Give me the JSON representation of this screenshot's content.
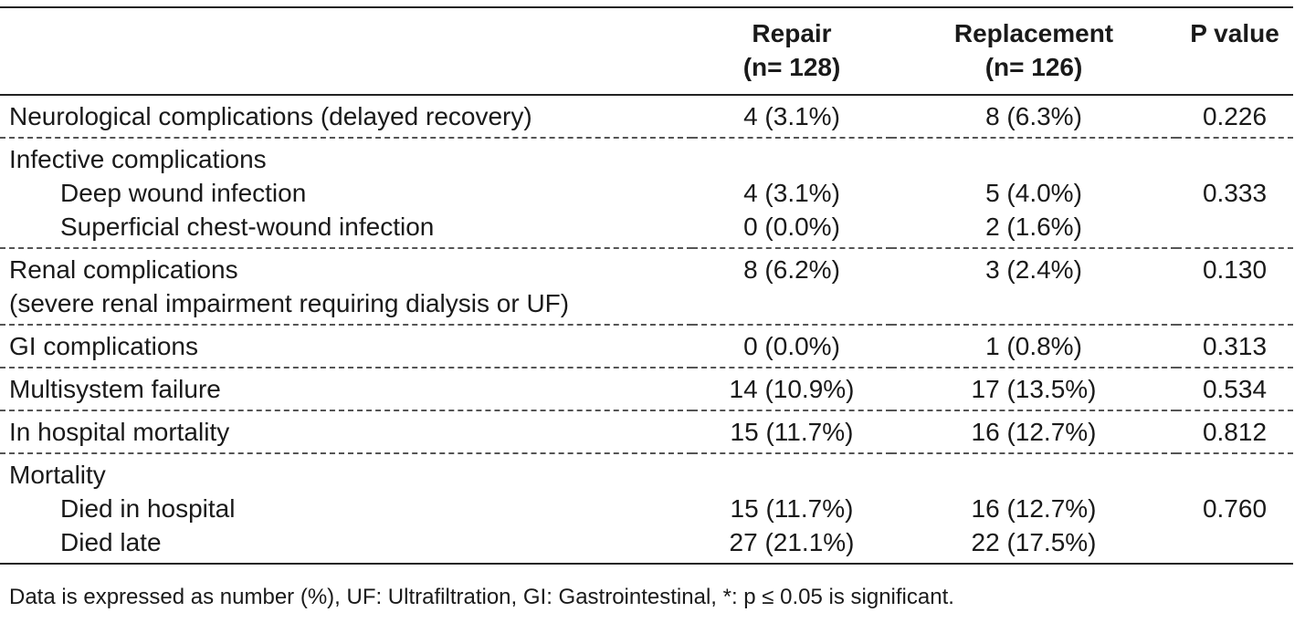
{
  "header": {
    "col_label": "",
    "repair": "Repair",
    "repair_n": "(n= 128)",
    "replacement": "Replacement",
    "replacement_n": "(n= 126)",
    "pvalue": "P value"
  },
  "rows": [
    {
      "lines": [
        {
          "label": "Neurological complications (delayed recovery)",
          "repair": "4 (3.1%)",
          "replacement": "8 (6.3%)",
          "p": "0.226",
          "indent": false
        }
      ]
    },
    {
      "lines": [
        {
          "label": "Infective complications",
          "repair": "",
          "replacement": "",
          "p": "",
          "indent": false
        },
        {
          "label": "Deep wound infection",
          "repair": "4 (3.1%)",
          "replacement": "5 (4.0%)",
          "p": "0.333",
          "indent": true
        },
        {
          "label": "Superficial chest-wound infection",
          "repair": "0 (0.0%)",
          "replacement": "2 (1.6%)",
          "p": "",
          "indent": true
        }
      ]
    },
    {
      "lines": [
        {
          "label": "Renal complications",
          "repair": "8 (6.2%)",
          "replacement": "3 (2.4%)",
          "p": "0.130",
          "indent": false
        },
        {
          "label": "(severe renal impairment requiring dialysis or UF)",
          "repair": "",
          "replacement": "",
          "p": "",
          "indent": false
        }
      ]
    },
    {
      "lines": [
        {
          "label": "GI complications",
          "repair": "0 (0.0%)",
          "replacement": "1 (0.8%)",
          "p": "0.313",
          "indent": false
        }
      ]
    },
    {
      "lines": [
        {
          "label": "Multisystem failure",
          "repair": "14 (10.9%)",
          "replacement": "17 (13.5%)",
          "p": "0.534",
          "indent": false
        }
      ]
    },
    {
      "lines": [
        {
          "label": "In hospital mortality",
          "repair": "15 (11.7%)",
          "replacement": "16 (12.7%)",
          "p": "0.812",
          "indent": false
        }
      ]
    },
    {
      "lines": [
        {
          "label": "Mortality",
          "repair": "",
          "replacement": "",
          "p": "",
          "indent": false
        },
        {
          "label": "Died in hospital",
          "repair": "15 (11.7%)",
          "replacement": "16 (12.7%)",
          "p": "0.760",
          "indent": true
        },
        {
          "label": "Died late",
          "repair": "27 (21.1%)",
          "replacement": "22 (17.5%)",
          "p": "",
          "indent": true
        }
      ]
    }
  ],
  "footnote": "Data is expressed as number (%), UF: Ultrafiltration, GI: Gastrointestinal, *: p ≤ 0.05 is significant."
}
